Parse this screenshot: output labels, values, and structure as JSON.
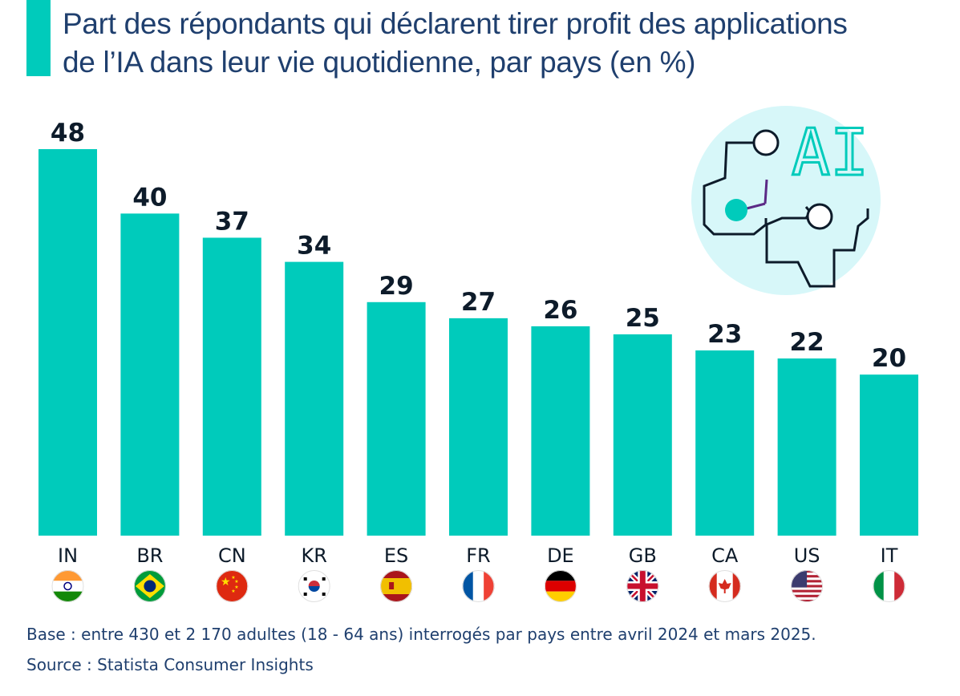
{
  "title": {
    "line1": "Part des répondants qui déclarent tirer profit des applications",
    "line2": "de l’IA dans leur vie quotidienne, par pays (en %)"
  },
  "colors": {
    "accent": "#00cbbb",
    "bar": "#00cbbb",
    "text": "#1f3f6e",
    "value_label": "#0d1b2a",
    "ai_circle": "#d7f7f9"
  },
  "badge": {
    "text": "AI",
    "icon": "ai-circuit-brain-icon"
  },
  "chart_data": {
    "type": "bar",
    "title": "Part des répondants qui déclarent tirer profit des applications de l’IA dans leur vie quotidienne, par pays (en %)",
    "categories": [
      "IN",
      "BR",
      "CN",
      "KR",
      "ES",
      "FR",
      "DE",
      "GB",
      "CA",
      "US",
      "IT"
    ],
    "values": [
      48,
      40,
      37,
      34,
      29,
      27,
      26,
      25,
      23,
      22,
      20
    ],
    "flags": [
      "india-flag-icon",
      "brazil-flag-icon",
      "china-flag-icon",
      "south-korea-flag-icon",
      "spain-flag-icon",
      "france-flag-icon",
      "germany-flag-icon",
      "uk-flag-icon",
      "canada-flag-icon",
      "usa-flag-icon",
      "italy-flag-icon"
    ],
    "ylim": [
      0,
      48
    ],
    "grid": false,
    "legend": "none"
  },
  "footer": {
    "base": "Base : entre 430 et 2 170 adultes (18 - 64 ans) interrogés par pays entre avril 2024 et mars 2025.",
    "source": "Source : Statista Consumer Insights"
  }
}
